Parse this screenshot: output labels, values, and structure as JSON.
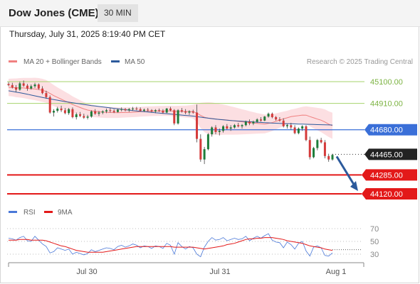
{
  "header": {
    "title": "Dow Jones (CME)",
    "interval": "30 MIN",
    "timestamp": "Thursday, July 31, 2025 8:19:40 PM CET"
  },
  "colors": {
    "candle_up": "#1e7d3a",
    "candle_down": "#d43a3a",
    "bollinger_fill": "#fbd9dd",
    "ma20": "#f08080",
    "ma50": "#2c5a9c",
    "current_level": "#3a6fd8",
    "support": "#e31919",
    "resistance": "#a6d36b",
    "price_label_bg": "#222222",
    "rsi": "#4a78d8",
    "rsi_9ma": "#e31919",
    "arrow": "#2c5a9c"
  },
  "chart_data": [
    {
      "type": "candlestick",
      "title": "",
      "legend": [
        {
          "label": "MA 20 + Bollinger Bands",
          "color": "#f08080"
        },
        {
          "label": "MA 50",
          "color": "#2c5a9c"
        }
      ],
      "legend_position": "top-left",
      "credit": "Research © 2025 Trading Central",
      "x_ticks": [
        "Jul 30",
        "Jul 31",
        "Aug 1"
      ],
      "levels": [
        {
          "value": 45100,
          "label": "45100.00",
          "kind": "resistance"
        },
        {
          "value": 44910,
          "label": "44910.00",
          "kind": "resistance"
        },
        {
          "value": 44680,
          "label": "44680.00",
          "kind": "pivot"
        },
        {
          "value": 44465,
          "label": "44465.00",
          "kind": "last"
        },
        {
          "value": 44285,
          "label": "44285.00",
          "kind": "support"
        },
        {
          "value": 44120,
          "label": "44120.00",
          "kind": "support"
        }
      ],
      "ohlc": [
        [
          45080,
          45095,
          45060,
          45070
        ],
        [
          45070,
          45090,
          45040,
          45050
        ],
        [
          45050,
          45070,
          45010,
          45030
        ],
        [
          45030,
          45100,
          45020,
          45085
        ],
        [
          45085,
          45110,
          45055,
          45065
        ],
        [
          45065,
          45080,
          45020,
          45040
        ],
        [
          45040,
          45075,
          45030,
          45060
        ],
        [
          45060,
          45090,
          45045,
          45075
        ],
        [
          45075,
          45085,
          45030,
          45040
        ],
        [
          45040,
          45060,
          44990,
          45000
        ],
        [
          45000,
          45020,
          44950,
          44965
        ],
        [
          44965,
          44980,
          44820,
          44830
        ],
        [
          44830,
          44860,
          44795,
          44845
        ],
        [
          44845,
          44880,
          44830,
          44865
        ],
        [
          44865,
          44890,
          44835,
          44850
        ],
        [
          44850,
          44870,
          44815,
          44825
        ],
        [
          44825,
          44870,
          44810,
          44860
        ],
        [
          44860,
          44875,
          44780,
          44790
        ],
        [
          44790,
          44830,
          44770,
          44815
        ],
        [
          44815,
          44835,
          44790,
          44800
        ],
        [
          44800,
          44820,
          44775,
          44785
        ],
        [
          44785,
          44810,
          44770,
          44795
        ],
        [
          44795,
          44850,
          44785,
          44840
        ],
        [
          44840,
          44860,
          44810,
          44820
        ],
        [
          44820,
          44845,
          44800,
          44830
        ],
        [
          44830,
          44850,
          44815,
          44840
        ],
        [
          44840,
          44865,
          44825,
          44850
        ],
        [
          44850,
          44870,
          44830,
          44845
        ],
        [
          44845,
          44860,
          44825,
          44835
        ],
        [
          44835,
          44865,
          44830,
          44855
        ],
        [
          44855,
          44875,
          44840,
          44860
        ],
        [
          44860,
          44870,
          44840,
          44850
        ],
        [
          44850,
          44870,
          44835,
          44860
        ],
        [
          44860,
          44880,
          44845,
          44865
        ],
        [
          44865,
          44880,
          44850,
          44860
        ],
        [
          44860,
          44875,
          44840,
          44845
        ],
        [
          44845,
          44865,
          44835,
          44855
        ],
        [
          44855,
          44870,
          44840,
          44850
        ],
        [
          44850,
          44860,
          44830,
          44840
        ],
        [
          44840,
          44860,
          44825,
          44850
        ],
        [
          44850,
          44865,
          44835,
          44845
        ],
        [
          44845,
          44860,
          44820,
          44830
        ],
        [
          44830,
          44870,
          44825,
          44865
        ],
        [
          44865,
          44880,
          44840,
          44850
        ],
        [
          44850,
          44860,
          44720,
          44735
        ],
        [
          44735,
          44860,
          44725,
          44850
        ],
        [
          44850,
          44870,
          44830,
          44840
        ],
        [
          44840,
          44860,
          44815,
          44830
        ],
        [
          44830,
          44850,
          44810,
          44840
        ],
        [
          44840,
          44855,
          44820,
          44830
        ],
        [
          44830,
          44900,
          44570,
          44600
        ],
        [
          44600,
          44640,
          44400,
          44420
        ],
        [
          44420,
          44530,
          44380,
          44510
        ],
        [
          44510,
          44650,
          44500,
          44640
        ],
        [
          44640,
          44710,
          44620,
          44700
        ],
        [
          44700,
          44720,
          44640,
          44660
        ],
        [
          44660,
          44690,
          44630,
          44670
        ],
        [
          44670,
          44720,
          44655,
          44710
        ],
        [
          44710,
          44730,
          44680,
          44690
        ],
        [
          44690,
          44720,
          44670,
          44700
        ],
        [
          44700,
          44730,
          44690,
          44720
        ],
        [
          44720,
          44740,
          44700,
          44710
        ],
        [
          44710,
          44730,
          44690,
          44720
        ],
        [
          44720,
          44760,
          44710,
          44750
        ],
        [
          44750,
          44770,
          44720,
          44735
        ],
        [
          44735,
          44760,
          44720,
          44750
        ],
        [
          44750,
          44780,
          44740,
          44770
        ],
        [
          44770,
          44790,
          44750,
          44760
        ],
        [
          44760,
          44800,
          44755,
          44795
        ],
        [
          44795,
          44830,
          44785,
          44820
        ],
        [
          44820,
          44830,
          44780,
          44790
        ],
        [
          44790,
          44800,
          44760,
          44770
        ],
        [
          44770,
          44790,
          44750,
          44760
        ],
        [
          44760,
          44780,
          44700,
          44710
        ],
        [
          44710,
          44730,
          44690,
          44720
        ],
        [
          44720,
          44740,
          44680,
          44700
        ],
        [
          44700,
          44720,
          44640,
          44650
        ],
        [
          44650,
          44700,
          44640,
          44690
        ],
        [
          44690,
          44720,
          44670,
          44710
        ],
        [
          44710,
          44720,
          44580,
          44590
        ],
        [
          44590,
          44620,
          44420,
          44440
        ],
        [
          44440,
          44530,
          44430,
          44520
        ],
        [
          44520,
          44600,
          44500,
          44590
        ],
        [
          44590,
          44610,
          44560,
          44570
        ],
        [
          44570,
          44590,
          44430,
          44450
        ],
        [
          44450,
          44470,
          44400,
          44420
        ],
        [
          44420,
          44470,
          44410,
          44460
        ]
      ],
      "ma20": [
        45050,
        45049,
        45046,
        45046,
        45045,
        45041,
        45038,
        45036,
        45031,
        45024,
        45015,
        44997,
        44978,
        44962,
        44947,
        44931,
        44917,
        44900,
        44887,
        44874,
        44862,
        44852,
        44846,
        44841,
        44837,
        44834,
        44832,
        44831,
        44830,
        44829,
        44830,
        44831,
        44832,
        44833,
        44835,
        44837,
        44839,
        44841,
        44842,
        44843,
        44844,
        44844,
        44845,
        44845,
        44841,
        44841,
        44840,
        44839,
        44839,
        44838,
        44826,
        44805,
        44789,
        44781,
        44778,
        44774,
        44770,
        44768,
        44765,
        44761,
        44757,
        44753,
        44749,
        44746,
        44742,
        44739,
        44736,
        44733,
        44730,
        44735,
        44742,
        44753,
        44765,
        44775,
        44784,
        44794,
        44799,
        44803,
        44808,
        44807,
        44795,
        44784,
        44773,
        44763,
        44748,
        44729,
        44715
      ],
      "bb_half_width": [
        75,
        78,
        82,
        85,
        88,
        92,
        95,
        98,
        100,
        101,
        100,
        97,
        92,
        88,
        84,
        80,
        76,
        72,
        68,
        64,
        60,
        56,
        54,
        52,
        51,
        50,
        49,
        48,
        47,
        46,
        45,
        44,
        44,
        43,
        43,
        43,
        43,
        43,
        43,
        43,
        43,
        43,
        44,
        44,
        46,
        48,
        50,
        52,
        55,
        60,
        80,
        110,
        130,
        140,
        140,
        138,
        135,
        132,
        128,
        124,
        120,
        115,
        110,
        105,
        100,
        95,
        90,
        86,
        82,
        78,
        74,
        70,
        66,
        64,
        62,
        62,
        64,
        68,
        72,
        78,
        85,
        92,
        98,
        104,
        110,
        112,
        114
      ],
      "ma50": [
        45020,
        45015,
        45009,
        45003,
        44997,
        44990,
        44983,
        44976,
        44969,
        44962,
        44956,
        44950,
        44944,
        44938,
        44932,
        44926,
        44921,
        44916,
        44911,
        44906,
        44901,
        44896,
        44891,
        44887,
        44883,
        44879,
        44875,
        44871,
        44867,
        44863,
        44859,
        44855,
        44851,
        44847,
        44844,
        44841,
        44838,
        44835,
        44832,
        44829,
        44826,
        44823,
        44820,
        44817,
        44814,
        44811,
        44808,
        44805,
        44802,
        44799,
        44795,
        44790,
        44785,
        44781,
        44777,
        44773,
        44770,
        44767,
        44764,
        44761,
        44758,
        44756,
        44754,
        44752,
        44750,
        44748,
        44746,
        44744,
        44742,
        44740,
        44738,
        44737,
        44736,
        44734,
        44733,
        44732,
        44731,
        44730,
        44729,
        44728,
        44727,
        44726,
        44725,
        44724,
        44723,
        44722,
        44721
      ],
      "forecast_arrow": {
        "from_value": 44465,
        "to_value": 44120
      }
    },
    {
      "type": "line",
      "legend": [
        {
          "label": "RSI",
          "color": "#4a78d8"
        },
        {
          "label": "9MA",
          "color": "#e31919"
        }
      ],
      "legend_position": "top-left",
      "y_ticks": [
        "70",
        "50",
        "30"
      ],
      "ylim": [
        20,
        80
      ],
      "series": [
        {
          "name": "RSI",
          "values": [
            55,
            54,
            52,
            56,
            58,
            51,
            50,
            58,
            52,
            46,
            42,
            32,
            34,
            40,
            38,
            36,
            38,
            30,
            33,
            31,
            29,
            31,
            37,
            34,
            36,
            38,
            40,
            39,
            37,
            42,
            44,
            41,
            43,
            46,
            44,
            40,
            43,
            42,
            39,
            43,
            42,
            39,
            47,
            44,
            30,
            48,
            42,
            38,
            42,
            40,
            30,
            26,
            41,
            50,
            56,
            52,
            53,
            56,
            51,
            53,
            55,
            53,
            54,
            58,
            51,
            55,
            58,
            55,
            59,
            62,
            52,
            49,
            48,
            40,
            49,
            45,
            38,
            47,
            50,
            35,
            27,
            41,
            43,
            40,
            28,
            27,
            32
          ]
        },
        {
          "name": "9MA",
          "values": [
            52,
            52,
            52,
            53,
            53,
            53,
            52,
            52,
            52,
            52,
            51,
            49,
            47,
            45,
            43,
            42,
            40,
            38,
            36,
            35,
            34,
            33,
            33,
            33,
            33,
            33,
            34,
            35,
            36,
            37,
            38,
            39,
            40,
            41,
            42,
            42,
            42,
            42,
            42,
            42,
            42,
            42,
            42,
            42,
            41,
            41,
            41,
            41,
            41,
            41,
            40,
            39,
            38,
            39,
            40,
            41,
            42,
            43,
            45,
            46,
            47,
            49,
            51,
            53,
            54,
            54,
            55,
            55,
            56,
            56,
            56,
            55,
            54,
            53,
            51,
            50,
            49,
            48,
            47,
            45,
            43,
            42,
            41,
            40,
            38,
            37,
            36
          ]
        }
      ]
    }
  ]
}
